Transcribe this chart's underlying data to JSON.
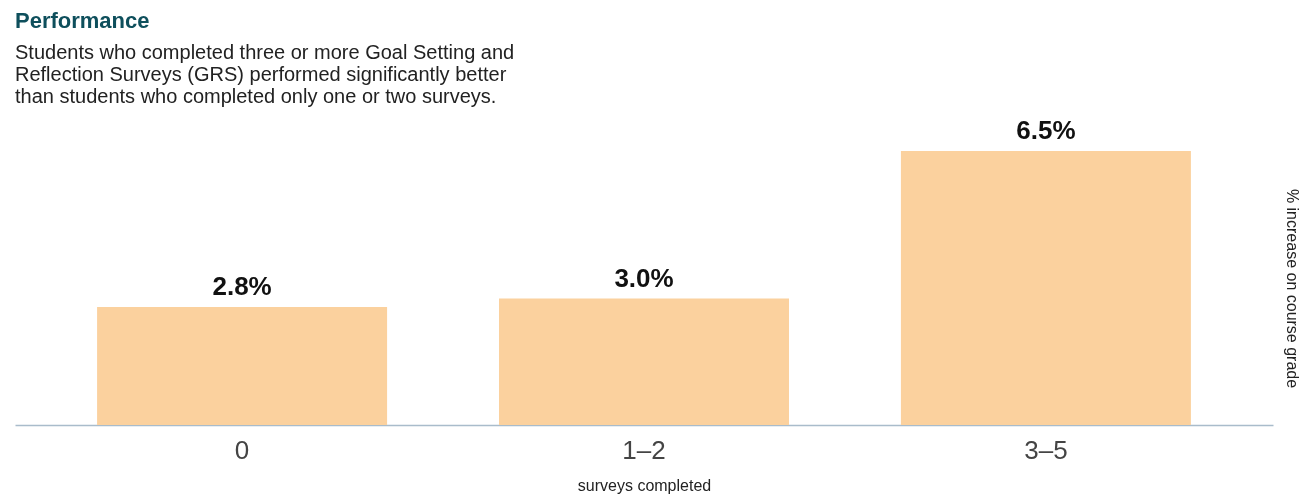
{
  "chart_data": {
    "type": "bar",
    "title": "Performance",
    "subtitle": [
      "Students who completed three or more Goal Setting and",
      "Reflection Surveys (GRS) performed significantly better",
      "than students who completed only one or two surveys."
    ],
    "categories": [
      "0",
      "1–2",
      "3–5"
    ],
    "values": [
      2.8,
      3.0,
      6.5
    ],
    "color": "#fbd19e",
    "xlabel": "surveys completed",
    "ylabel": "% increase on course grade",
    "data_labels": true,
    "value_labels": [
      "2.8%",
      "3.0%",
      "6.5%"
    ],
    "grid": false
  }
}
